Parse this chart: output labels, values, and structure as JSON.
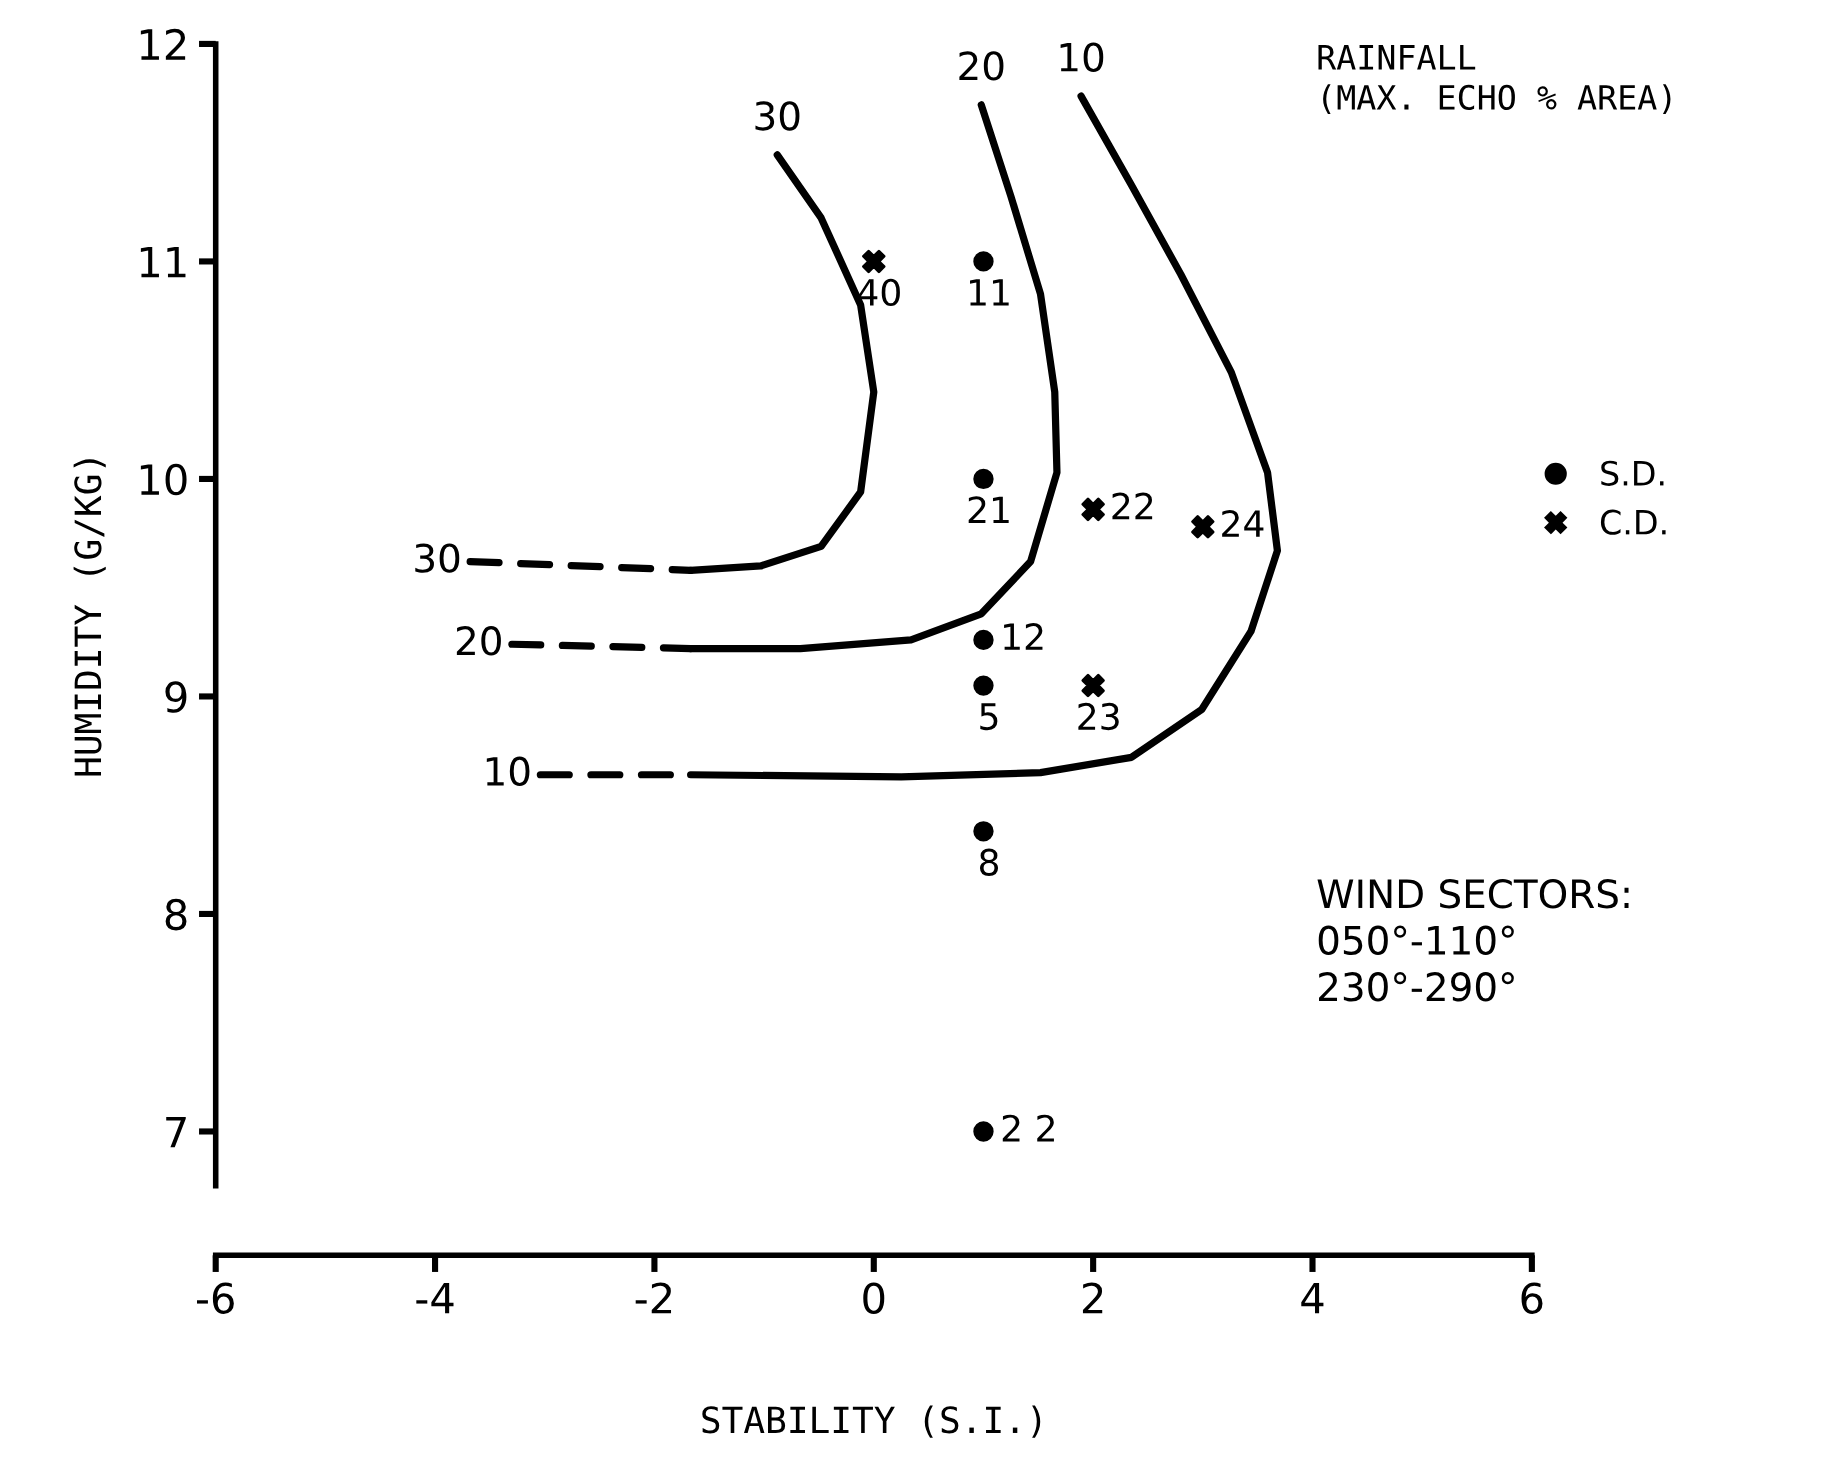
{
  "chart_data": {
    "type": "scatter",
    "xlabel": "STABILITY (S.I.)",
    "ylabel": "HUMIDITY (G/KG)",
    "xlim": [
      -6,
      6
    ],
    "xticks": [
      -6,
      -4,
      -2,
      0,
      2,
      4,
      6
    ],
    "ylim": [
      6.75,
      12
    ],
    "yticks": [
      7,
      8,
      9,
      10,
      11,
      12
    ],
    "grid": false,
    "legend": "right",
    "series": [
      {
        "type": "line",
        "line_style": "dashed",
        "color": "#000000",
        "x": [
          -3.68,
          -1.67
        ],
        "values": [
          9.62,
          9.58
        ]
      },
      {
        "type": "line",
        "line_style": "solid",
        "color": "#000000",
        "x": [
          -1.67,
          -1.03,
          -0.48,
          -0.12,
          0,
          -0.12,
          -0.48,
          -0.88
        ],
        "values": [
          9.58,
          9.6,
          9.69,
          9.94,
          10.4,
          10.8,
          11.2,
          11.49
        ]
      },
      {
        "type": "line",
        "line_style": "dashed",
        "color": "#000000",
        "x": [
          -3.3,
          -1.67
        ],
        "values": [
          9.24,
          9.22
        ]
      },
      {
        "type": "line",
        "line_style": "solid",
        "color": "#000000",
        "x": [
          -1.67,
          -0.67,
          0.34,
          0.98,
          1.43,
          1.67,
          1.65,
          1.52,
          1.25,
          0.98
        ],
        "values": [
          9.22,
          9.22,
          9.26,
          9.38,
          9.62,
          10.03,
          10.4,
          10.85,
          11.3,
          11.72
        ]
      },
      {
        "type": "line",
        "line_style": "dashed",
        "color": "#000000",
        "x": [
          -3.04,
          -1.67
        ],
        "values": [
          8.64,
          8.64
        ]
      },
      {
        "type": "line",
        "line_style": "solid",
        "color": "#000000",
        "x": [
          -1.67,
          0.25,
          1.52,
          2.35,
          2.99,
          3.44,
          3.68,
          3.59,
          3.26,
          2.8,
          2.35,
          1.89
        ],
        "values": [
          8.64,
          8.63,
          8.65,
          8.72,
          8.94,
          9.3,
          9.67,
          10.03,
          10.49,
          10.94,
          11.35,
          11.76
        ]
      },
      {
        "name": "S.D.",
        "marker": "circle",
        "color": "#000000",
        "x": [
          1,
          1,
          1,
          1,
          1,
          1
        ],
        "values": [
          11,
          10,
          9.26,
          9.05,
          8.38,
          7
        ]
      },
      {
        "name": "C.D.",
        "marker": "cross",
        "color": "#000000",
        "x": [
          0,
          2,
          3,
          2
        ],
        "values": [
          11,
          9.86,
          9.78,
          9.05
        ]
      }
    ],
    "annotations": [
      "RAINFALL\n(MAX. ECHO % AREA)",
      {
        "text": "30",
        "x": -3.68,
        "y": 9.62
      },
      {
        "text": "30",
        "x": -0.88,
        "y": 11.49
      },
      {
        "text": "20",
        "x": -3.3,
        "y": 9.24
      },
      {
        "text": "20",
        "x": 0.98,
        "y": 11.72
      },
      {
        "text": "10",
        "x": -3.04,
        "y": 8.64
      },
      {
        "text": "10",
        "x": 1.89,
        "y": 11.76
      },
      {
        "text": "11",
        "x": 1,
        "y": 11
      },
      {
        "text": "21",
        "x": 1,
        "y": 10
      },
      {
        "text": "12",
        "x": 1,
        "y": 9.26
      },
      {
        "text": "5",
        "x": 1,
        "y": 9.05
      },
      {
        "text": "8",
        "x": 1,
        "y": 8.38
      },
      {
        "text": "2 2",
        "x": 1,
        "y": 7
      },
      {
        "text": "40",
        "x": 0,
        "y": 11
      },
      {
        "text": "22",
        "x": 2,
        "y": 9.86
      },
      {
        "text": "24",
        "x": 3,
        "y": 9.78
      },
      {
        "text": "23",
        "x": 2,
        "y": 9.05
      },
      "WIND SECTORS:\n050°-110°\n230°-290°"
    ]
  }
}
